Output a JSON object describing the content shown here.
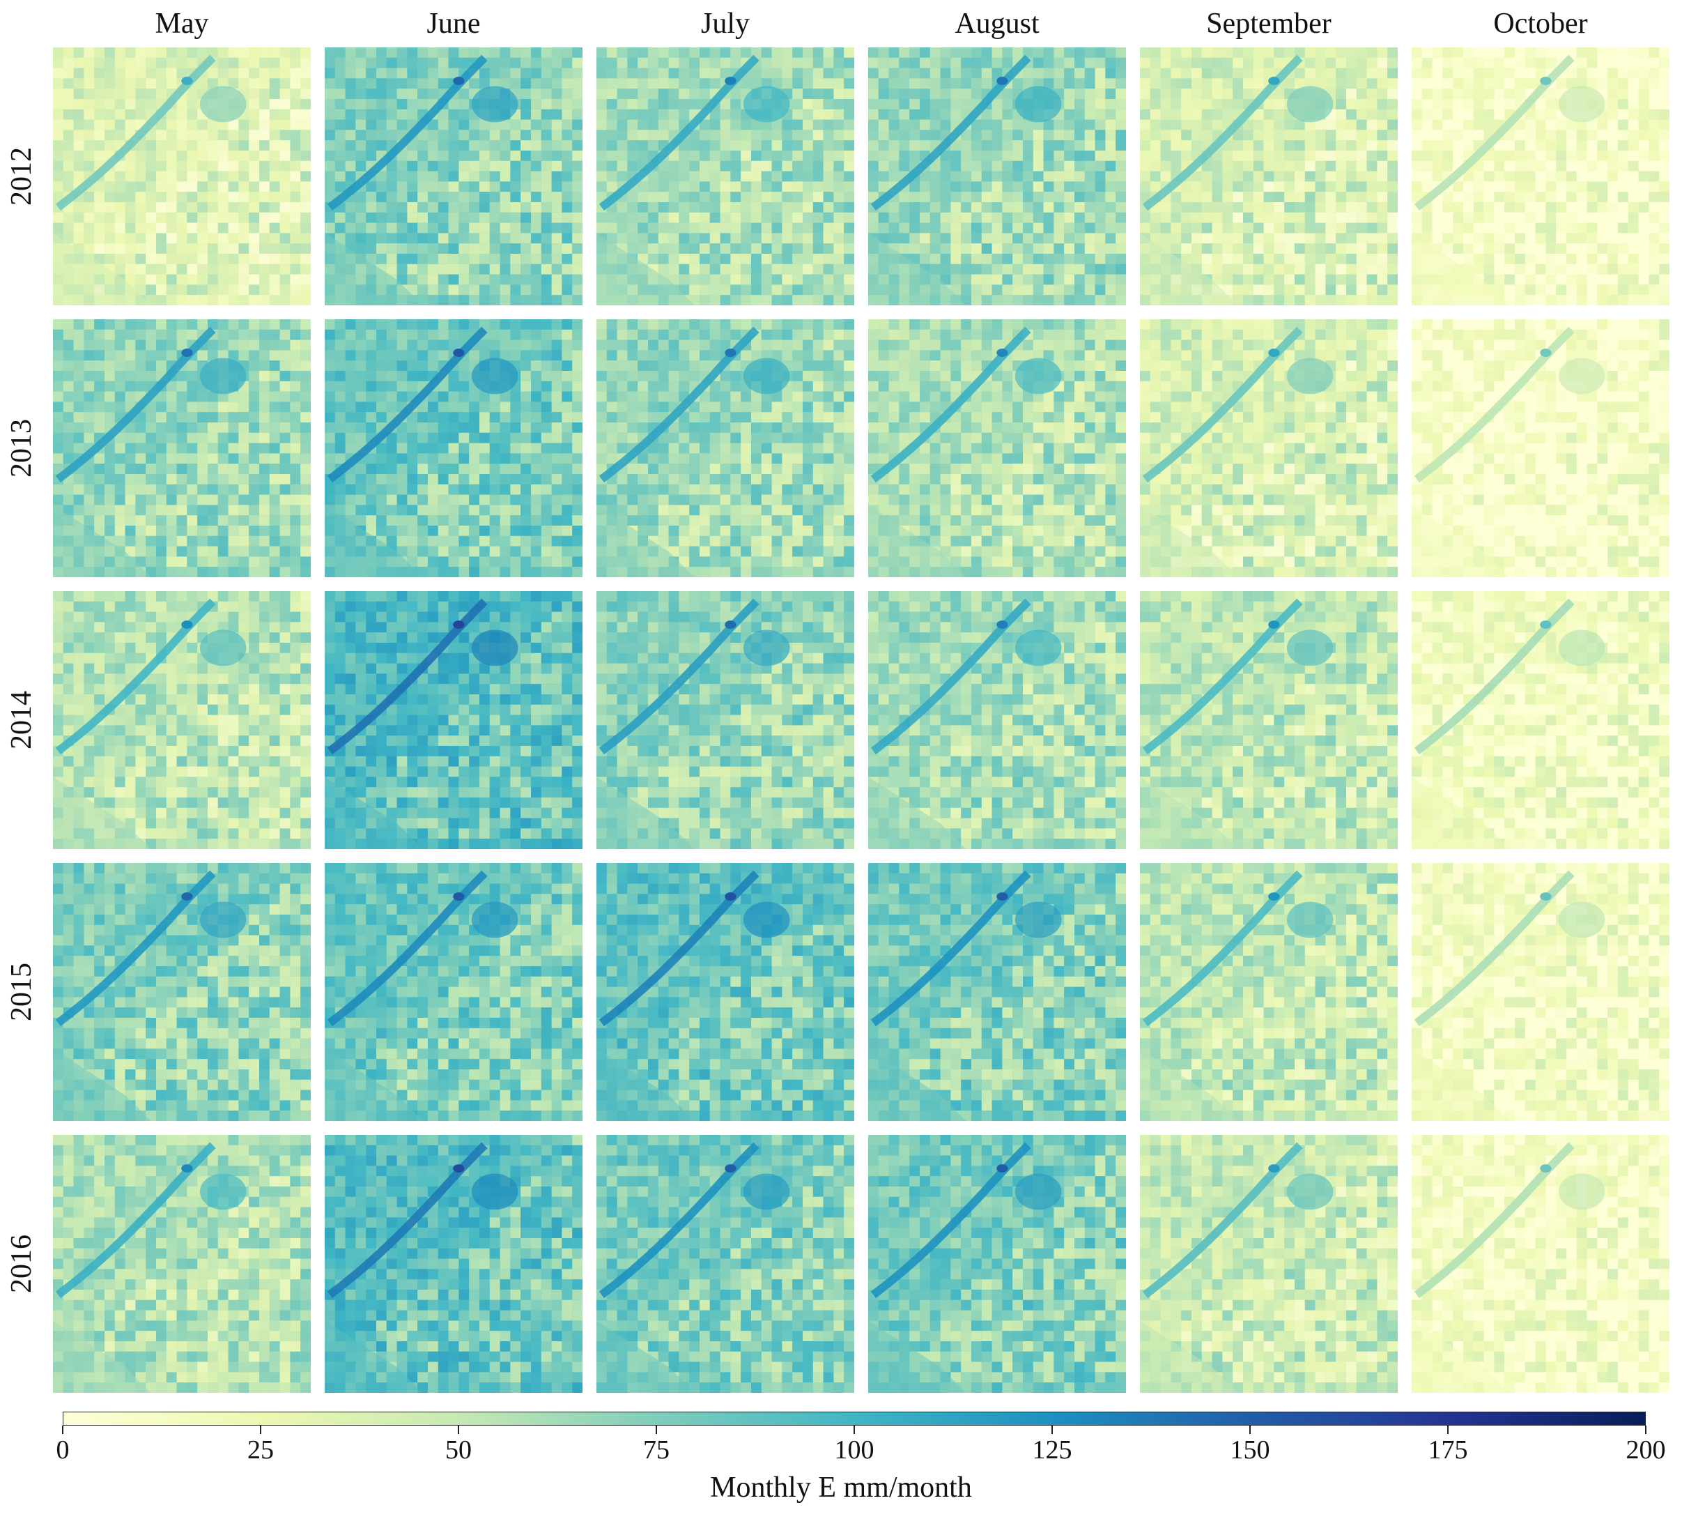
{
  "columns": [
    "May",
    "June",
    "July",
    "August",
    "September",
    "October"
  ],
  "rows": [
    "2012",
    "2013",
    "2014",
    "2015",
    "2016"
  ],
  "colorbar": {
    "label": "Monthly E mm/month",
    "min": 0,
    "max": 200,
    "ticks": [
      "0",
      "25",
      "50",
      "75",
      "100",
      "125",
      "150",
      "175",
      "200"
    ],
    "colormap": "YlGnBu",
    "stops": [
      "#ffffd9",
      "#edf8b1",
      "#c7e9b4",
      "#7fcdbb",
      "#41b6c4",
      "#1d91c0",
      "#225ea8",
      "#253494",
      "#081d58"
    ]
  },
  "map_tile_intensity_estimate": [
    [
      0.18,
      0.38,
      0.32,
      0.34,
      0.2,
      0.06
    ],
    [
      0.35,
      0.42,
      0.34,
      0.3,
      0.2,
      0.05
    ],
    [
      0.28,
      0.48,
      0.36,
      0.32,
      0.26,
      0.09
    ],
    [
      0.38,
      0.42,
      0.44,
      0.4,
      0.26,
      0.08
    ],
    [
      0.3,
      0.46,
      0.4,
      0.4,
      0.24,
      0.07
    ]
  ]
}
